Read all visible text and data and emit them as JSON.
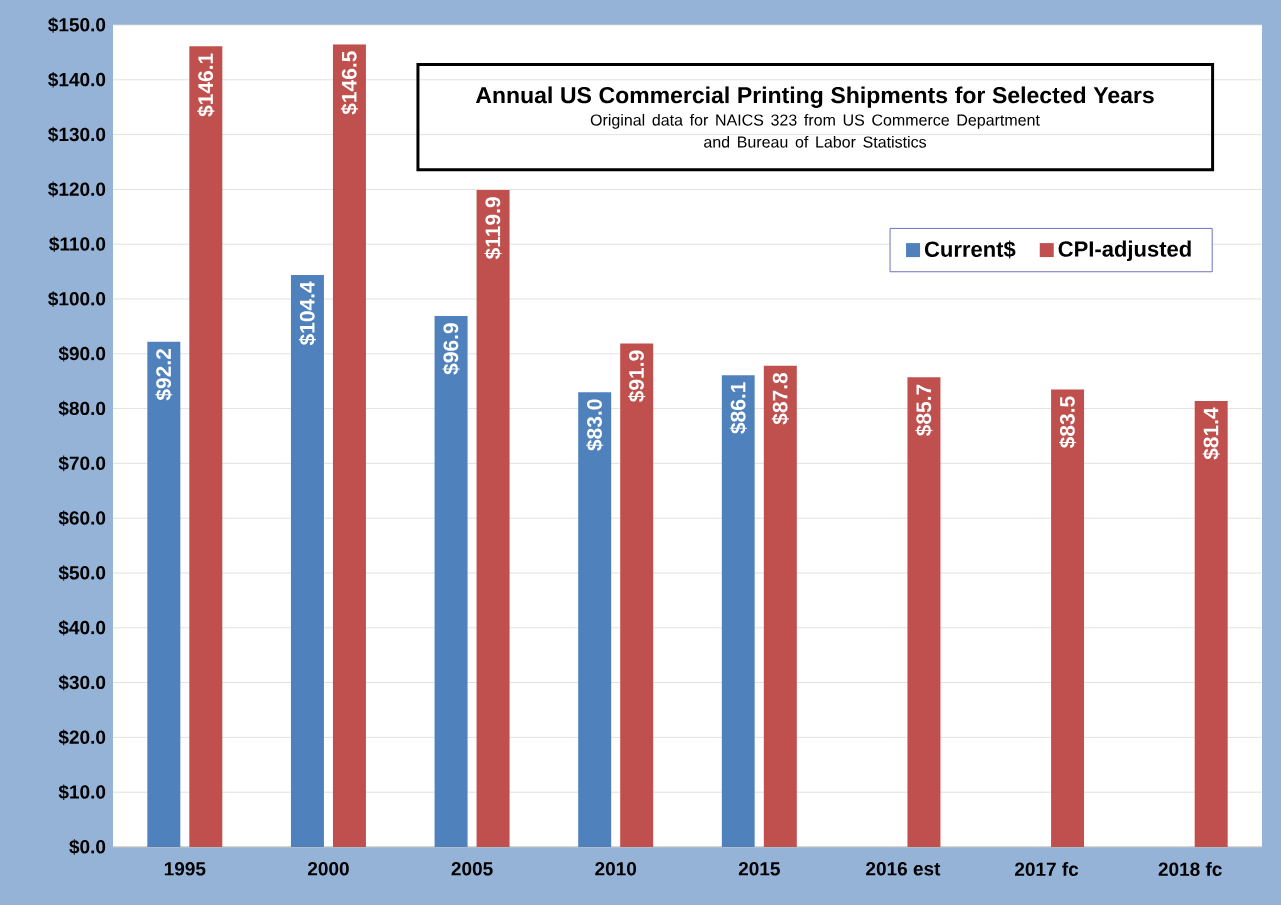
{
  "chart_data": {
    "type": "bar",
    "title": "Annual US Commercial Printing Shipments for Selected Years",
    "subtitle": "Original data for NAICS 323 from US Commerce Department and Bureau of Labor Statistics",
    "categories": [
      "1995",
      "2000",
      "2005",
      "2010",
      "2015",
      "2016 est",
      "2017 fc",
      "2018 fc"
    ],
    "series": [
      {
        "name": "Current$",
        "color": "#4f81bd",
        "values": [
          92.2,
          104.4,
          96.9,
          83.0,
          86.1,
          null,
          null,
          null
        ],
        "value_labels": [
          "$92.2",
          "$104.4",
          "$96.9",
          "$83.0",
          "$86.1",
          null,
          null,
          null
        ]
      },
      {
        "name": "CPI-adjusted",
        "color": "#c0504d",
        "values": [
          146.1,
          146.5,
          119.9,
          91.9,
          87.8,
          85.7,
          83.5,
          81.4
        ],
        "value_labels": [
          "$146.1",
          "$146.5",
          "$119.9",
          "$91.9",
          "$87.8",
          "$85.7",
          "$83.5",
          "$81.4"
        ]
      }
    ],
    "ylim": [
      0,
      150
    ],
    "yticks": [
      {
        "value": 0,
        "label": "$0.0"
      },
      {
        "value": 10,
        "label": "$10.0"
      },
      {
        "value": 20,
        "label": "$20.0"
      },
      {
        "value": 30,
        "label": "$30.0"
      },
      {
        "value": 40,
        "label": "$40.0"
      },
      {
        "value": 50,
        "label": "$50.0"
      },
      {
        "value": 60,
        "label": "$60.0"
      },
      {
        "value": 70,
        "label": "$70.0"
      },
      {
        "value": 80,
        "label": "$80.0"
      },
      {
        "value": 90,
        "label": "$90.0"
      },
      {
        "value": 100,
        "label": "$100.0"
      },
      {
        "value": 110,
        "label": "$110.0"
      },
      {
        "value": 120,
        "label": "$120.0"
      },
      {
        "value": 130,
        "label": "$130.0"
      },
      {
        "value": 140,
        "label": "$140.0"
      },
      {
        "value": 150,
        "label": "$150.0"
      }
    ],
    "grid": "y",
    "legend": "top right"
  }
}
